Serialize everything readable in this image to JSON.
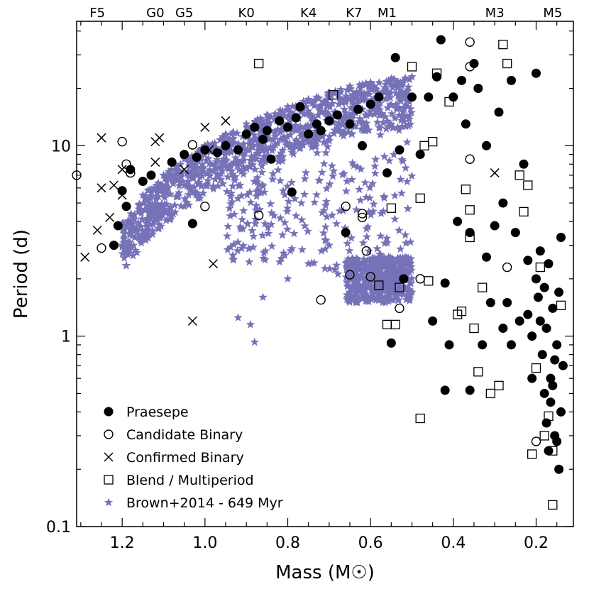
{
  "chart_data": {
    "type": "scatter",
    "xlabel": "Mass (M☉)",
    "ylabel": "Period (d)",
    "x_inverted": true,
    "xlim": [
      1.31,
      0.11
    ],
    "ylim": [
      0.1,
      45
    ],
    "yscale": "log",
    "x_ticks": [
      1.2,
      1.0,
      0.8,
      0.6,
      0.4,
      0.2
    ],
    "x_tick_labels": [
      "1.2",
      "1.0",
      "0.8",
      "0.6",
      "0.4",
      "0.2"
    ],
    "y_ticks": [
      10,
      1,
      0.1
    ],
    "y_tick_labels": [
      "10",
      "1",
      "0.1"
    ],
    "spectral_types": [
      {
        "label": "F5",
        "mass": 1.26
      },
      {
        "label": "G0",
        "mass": 1.12
      },
      {
        "label": "G5",
        "mass": 1.05
      },
      {
        "label": "K0",
        "mass": 0.9
      },
      {
        "label": "K4",
        "mass": 0.75
      },
      {
        "label": "K7",
        "mass": 0.64
      },
      {
        "label": "M1",
        "mass": 0.56
      },
      {
        "label": "M3",
        "mass": 0.3
      },
      {
        "label": "M5",
        "mass": 0.16
      }
    ],
    "legend": {
      "placement": "bottom-left",
      "entries": [
        "Praesepe",
        "Candidate Binary",
        "Confirmed Binary",
        "Blend / Multiperiod",
        "Brown+2014 - 649 Myr"
      ]
    },
    "colors": {
      "model": "#7672b8",
      "points": "#000000"
    },
    "series": [
      {
        "name": "Praesepe",
        "marker": "filled-circle",
        "points": [
          [
            1.22,
            3.0
          ],
          [
            1.21,
            3.8
          ],
          [
            1.19,
            4.8
          ],
          [
            1.2,
            5.8
          ],
          [
            1.18,
            7.5
          ],
          [
            1.15,
            6.5
          ],
          [
            1.13,
            7.0
          ],
          [
            1.08,
            8.2
          ],
          [
            1.05,
            9.0
          ],
          [
            1.03,
            3.9
          ],
          [
            1.02,
            8.7
          ],
          [
            1.0,
            9.5
          ],
          [
            0.97,
            9.2
          ],
          [
            0.95,
            10.0
          ],
          [
            0.92,
            9.5
          ],
          [
            0.9,
            11.5
          ],
          [
            0.88,
            12.5
          ],
          [
            0.86,
            10.8
          ],
          [
            0.85,
            12.0
          ],
          [
            0.84,
            8.5
          ],
          [
            0.82,
            13.5
          ],
          [
            0.8,
            12.5
          ],
          [
            0.79,
            5.7
          ],
          [
            0.78,
            14.0
          ],
          [
            0.77,
            16.0
          ],
          [
            0.75,
            11.5
          ],
          [
            0.73,
            13.0
          ],
          [
            0.72,
            12.0
          ],
          [
            0.7,
            13.5
          ],
          [
            0.68,
            14.5
          ],
          [
            0.66,
            3.5
          ],
          [
            0.65,
            13.0
          ],
          [
            0.63,
            15.5
          ],
          [
            0.62,
            10.0
          ],
          [
            0.6,
            16.5
          ],
          [
            0.58,
            18.0
          ],
          [
            0.56,
            7.2
          ],
          [
            0.55,
            0.92
          ],
          [
            0.54,
            29.0
          ],
          [
            0.53,
            9.5
          ],
          [
            0.52,
            2.0
          ],
          [
            0.5,
            18.0
          ],
          [
            0.48,
            9.0
          ],
          [
            0.46,
            18.0
          ],
          [
            0.44,
            23.0
          ],
          [
            0.43,
            36.0
          ],
          [
            0.42,
            1.9
          ],
          [
            0.41,
            0.9
          ],
          [
            0.4,
            18.0
          ],
          [
            0.39,
            4.0
          ],
          [
            0.38,
            22.0
          ],
          [
            0.37,
            13.0
          ],
          [
            0.36,
            3.5
          ],
          [
            0.35,
            27.0
          ],
          [
            0.34,
            20.0
          ],
          [
            0.33,
            0.9
          ],
          [
            0.32,
            10.0
          ],
          [
            0.31,
            1.5
          ],
          [
            0.3,
            3.8
          ],
          [
            0.29,
            15.0
          ],
          [
            0.28,
            5.0
          ],
          [
            0.27,
            1.5
          ],
          [
            0.26,
            22.0
          ],
          [
            0.25,
            3.5
          ],
          [
            0.24,
            1.2
          ],
          [
            0.23,
            8.0
          ],
          [
            0.22,
            2.5
          ],
          [
            0.21,
            1.0
          ],
          [
            0.2,
            2.0
          ],
          [
            0.195,
            1.6
          ],
          [
            0.19,
            1.2
          ],
          [
            0.185,
            0.8
          ],
          [
            0.18,
            0.5
          ],
          [
            0.175,
            0.35
          ],
          [
            0.17,
            0.25
          ],
          [
            0.165,
            0.6
          ],
          [
            0.16,
            1.4
          ],
          [
            0.155,
            0.3
          ],
          [
            0.15,
            0.9
          ],
          [
            0.145,
            0.2
          ],
          [
            0.14,
            3.3
          ],
          [
            0.135,
            0.7
          ],
          [
            0.2,
            24.0
          ],
          [
            0.19,
            2.8
          ],
          [
            0.18,
            1.8
          ],
          [
            0.175,
            1.1
          ],
          [
            0.17,
            2.4
          ],
          [
            0.165,
            0.45
          ],
          [
            0.16,
            0.55
          ],
          [
            0.155,
            0.75
          ],
          [
            0.15,
            0.28
          ],
          [
            0.145,
            1.7
          ],
          [
            0.14,
            0.4
          ],
          [
            0.42,
            0.52
          ],
          [
            0.36,
            0.52
          ],
          [
            0.45,
            1.2
          ],
          [
            0.26,
            0.9
          ],
          [
            0.32,
            2.6
          ],
          [
            0.28,
            1.1
          ],
          [
            0.22,
            1.3
          ],
          [
            0.21,
            0.6
          ]
        ]
      },
      {
        "name": "Candidate Binary",
        "marker": "open-circle",
        "points": [
          [
            1.31,
            7.0
          ],
          [
            1.25,
            2.9
          ],
          [
            1.2,
            10.5
          ],
          [
            1.19,
            8.0
          ],
          [
            1.18,
            7.2
          ],
          [
            1.03,
            10.1
          ],
          [
            1.0,
            4.8
          ],
          [
            0.87,
            4.3
          ],
          [
            0.72,
            1.55
          ],
          [
            0.66,
            4.8
          ],
          [
            0.65,
            2.1
          ],
          [
            0.62,
            4.2
          ],
          [
            0.62,
            4.4
          ],
          [
            0.61,
            2.8
          ],
          [
            0.6,
            2.05
          ],
          [
            0.53,
            1.4
          ],
          [
            0.48,
            2.0
          ],
          [
            0.36,
            35.0
          ],
          [
            0.36,
            26.0
          ],
          [
            0.36,
            8.5
          ],
          [
            0.27,
            2.3
          ],
          [
            0.2,
            0.28
          ]
        ]
      },
      {
        "name": "Confirmed Binary",
        "marker": "cross",
        "points": [
          [
            1.29,
            2.6
          ],
          [
            1.26,
            3.6
          ],
          [
            1.25,
            6.0
          ],
          [
            1.25,
            11.0
          ],
          [
            1.23,
            4.2
          ],
          [
            1.22,
            6.2
          ],
          [
            1.2,
            7.5
          ],
          [
            1.2,
            5.5
          ],
          [
            1.12,
            8.2
          ],
          [
            1.12,
            10.5
          ],
          [
            1.11,
            11.0
          ],
          [
            1.05,
            7.5
          ],
          [
            1.03,
            1.2
          ],
          [
            1.0,
            12.5
          ],
          [
            0.99,
            9.5
          ],
          [
            0.98,
            2.4
          ],
          [
            0.95,
            13.5
          ],
          [
            0.3,
            7.2
          ]
        ]
      },
      {
        "name": "Blend / Multiperiod",
        "marker": "open-square",
        "points": [
          [
            0.87,
            27.0
          ],
          [
            0.69,
            18.5
          ],
          [
            0.58,
            1.85
          ],
          [
            0.56,
            1.15
          ],
          [
            0.55,
            4.7
          ],
          [
            0.54,
            1.15
          ],
          [
            0.53,
            1.8
          ],
          [
            0.5,
            26.0
          ],
          [
            0.48,
            5.3
          ],
          [
            0.48,
            0.37
          ],
          [
            0.47,
            10.0
          ],
          [
            0.46,
            1.95
          ],
          [
            0.45,
            10.5
          ],
          [
            0.44,
            24.0
          ],
          [
            0.41,
            17.0
          ],
          [
            0.39,
            1.3
          ],
          [
            0.38,
            1.35
          ],
          [
            0.37,
            5.9
          ],
          [
            0.36,
            4.6
          ],
          [
            0.36,
            3.3
          ],
          [
            0.35,
            1.1
          ],
          [
            0.34,
            0.65
          ],
          [
            0.33,
            1.8
          ],
          [
            0.31,
            0.5
          ],
          [
            0.29,
            0.55
          ],
          [
            0.28,
            34.0
          ],
          [
            0.27,
            27.0
          ],
          [
            0.24,
            7.0
          ],
          [
            0.23,
            4.5
          ],
          [
            0.22,
            6.2
          ],
          [
            0.21,
            0.24
          ],
          [
            0.2,
            0.68
          ],
          [
            0.19,
            2.3
          ],
          [
            0.18,
            0.3
          ],
          [
            0.17,
            0.38
          ],
          [
            0.16,
            0.13
          ],
          [
            0.16,
            0.25
          ],
          [
            0.14,
            1.45
          ]
        ]
      },
      {
        "name": "Brown+2014 - 649 Myr",
        "marker": "star",
        "description": "Model envelope: upper sequence rising from ~3.8 d at 1.2 Msun to ~23 d at 0.5 Msun; dense fast-rotator band near 1.5-2.5 d for 0.65-0.5 Msun; scattered stars down to ~0.93 d near 0.88 Msun",
        "points": [
          [
            1.2,
            3.9
          ],
          [
            1.15,
            5.5
          ],
          [
            1.1,
            7.0
          ],
          [
            1.05,
            8.5
          ],
          [
            1.0,
            10.0
          ],
          [
            0.95,
            11.5
          ],
          [
            0.9,
            13.0
          ],
          [
            0.85,
            14.5
          ],
          [
            0.8,
            16.0
          ],
          [
            0.75,
            17.5
          ],
          [
            0.7,
            19.0
          ],
          [
            0.65,
            20.5
          ],
          [
            0.6,
            21.5
          ],
          [
            0.55,
            22.5
          ],
          [
            0.5,
            23.0
          ],
          [
            0.88,
            0.93
          ],
          [
            0.89,
            1.15
          ],
          [
            0.92,
            1.25
          ],
          [
            0.86,
            1.6
          ],
          [
            0.8,
            2.0
          ],
          [
            0.75,
            2.4
          ],
          [
            0.7,
            3.0
          ],
          [
            0.65,
            1.7
          ],
          [
            0.6,
            1.6
          ],
          [
            0.55,
            1.55
          ],
          [
            0.5,
            1.7
          ]
        ]
      }
    ]
  }
}
